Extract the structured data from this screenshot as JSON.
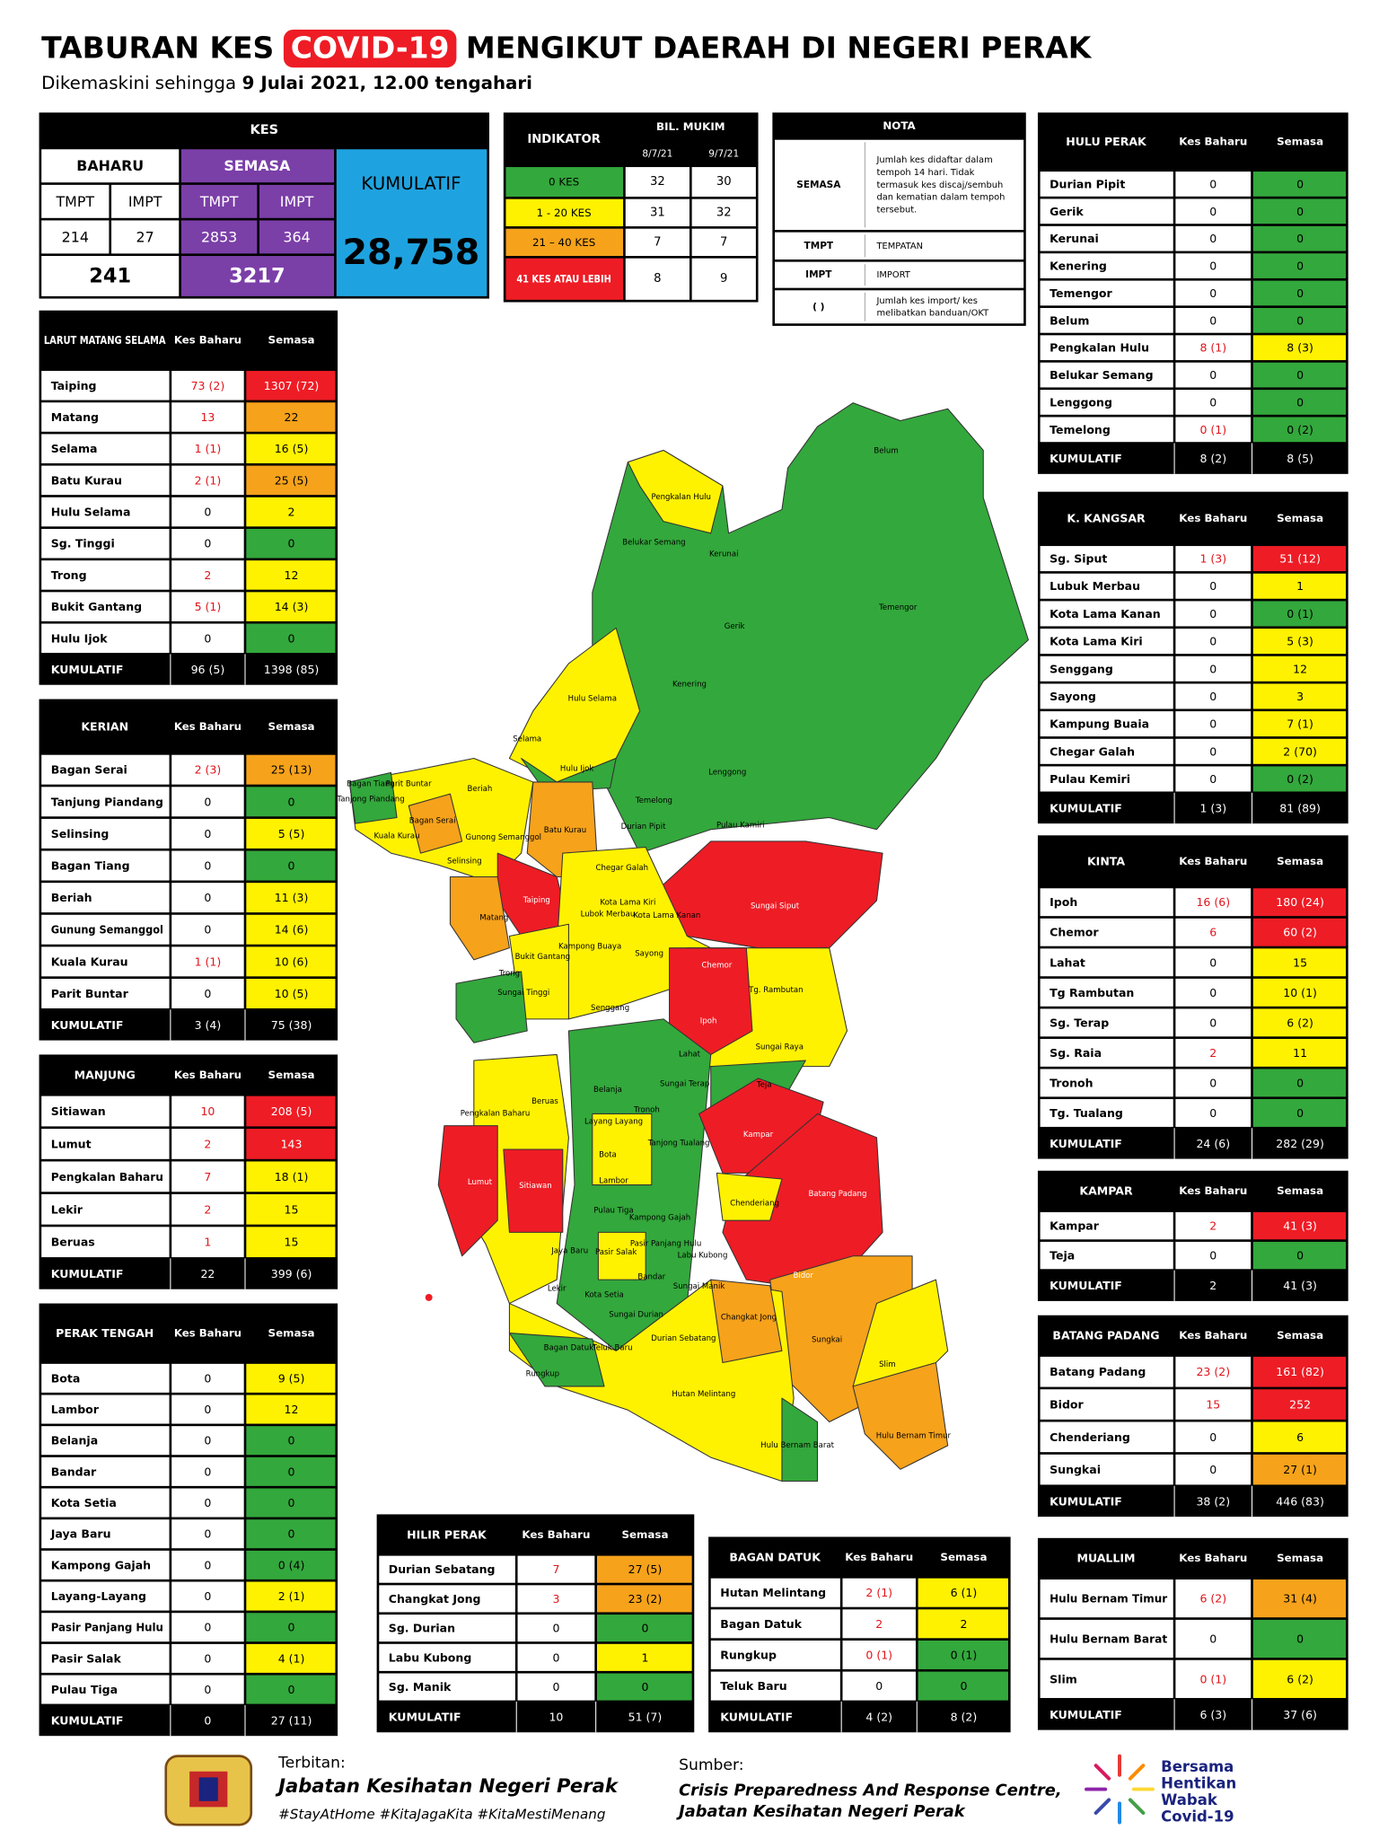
{
  "header": {
    "title_before": "TABURAN KES",
    "title_highlight": "COVID-19",
    "title_after": "MENGIKUT DAERAH DI NEGERI PERAK",
    "subtitle_before": "Dikemaskini sehingga",
    "subtitle_date": "9 Julai 2021, 12.00 tengahari"
  },
  "kes": {
    "title": "KES",
    "baharu": "BAHARU",
    "semasa": "SEMASA",
    "kumulatif": "KUMULATIF",
    "sub": [
      "TMPT",
      "IMPT",
      "TMPT",
      "IMPT"
    ],
    "values": [
      "214",
      "27",
      "2853",
      "364"
    ],
    "baharu_total": "241",
    "semasa_total": "3217",
    "kumulatif_total": "28,758"
  },
  "indikator": {
    "title": "INDIKATOR",
    "group": "BIL. MUKIM",
    "dates": [
      "8/7/21",
      "9/7/21"
    ],
    "rows": [
      {
        "label": "0 KES",
        "color": "green",
        "values": [
          32,
          30
        ]
      },
      {
        "label": "1 - 20 KES",
        "color": "yellow",
        "values": [
          31,
          32
        ]
      },
      {
        "label": "21 – 40 KES",
        "color": "orange",
        "values": [
          7,
          7
        ]
      },
      {
        "label": "41 KES ATAU LEBIH",
        "color": "red",
        "values": [
          8,
          9
        ]
      }
    ]
  },
  "nota": {
    "title": "NOTA",
    "rows": [
      {
        "key": "SEMASA",
        "text": "Jumlah kes didaftar dalam tempoh 14 hari. Tidak termasuk kes discaj/sembuh dan kematian dalam tempoh tersebut."
      },
      {
        "key": "TMPT",
        "text": "TEMPATAN"
      },
      {
        "key": "IMPT",
        "text": "IMPORT"
      },
      {
        "key": "(     )",
        "text": "Jumlah kes import/ kes melibatkan banduan/OKT"
      }
    ]
  },
  "district_columns": [
    "Kes Baharu",
    "Semasa"
  ],
  "total_label": "KUMULATIF",
  "districts": [
    {
      "title": "LARUT MATANG SELAMA",
      "rows": [
        {
          "name": "Taiping",
          "baharu": "73 (2)",
          "semasa": "1307 (72)",
          "color": "red"
        },
        {
          "name": "Matang",
          "baharu": "13",
          "semasa": "22",
          "color": "orange"
        },
        {
          "name": "Selama",
          "baharu": "1 (1)",
          "semasa": "16 (5)",
          "color": "yellow"
        },
        {
          "name": "Batu Kurau",
          "baharu": "2 (1)",
          "semasa": "25 (5)",
          "color": "orange"
        },
        {
          "name": "Hulu Selama",
          "baharu": "0",
          "semasa": "2",
          "color": "yellow"
        },
        {
          "name": "Sg. Tinggi",
          "baharu": "0",
          "semasa": "0",
          "color": "green"
        },
        {
          "name": "Trong",
          "baharu": "2",
          "semasa": "12",
          "color": "yellow"
        },
        {
          "name": "Bukit Gantang",
          "baharu": "5 (1)",
          "semasa": "14 (3)",
          "color": "yellow"
        },
        {
          "name": "Hulu Ijok",
          "baharu": "0",
          "semasa": "0",
          "color": "green"
        }
      ],
      "total": {
        "baharu": "96 (5)",
        "semasa": "1398 (85)"
      }
    },
    {
      "title": "KERIAN",
      "rows": [
        {
          "name": "Bagan Serai",
          "baharu": "2 (3)",
          "semasa": "25 (13)",
          "color": "orange"
        },
        {
          "name": "Tanjung Piandang",
          "baharu": "0",
          "semasa": "0",
          "color": "green"
        },
        {
          "name": "Selinsing",
          "baharu": "0",
          "semasa": "5 (5)",
          "color": "yellow"
        },
        {
          "name": "Bagan Tiang",
          "baharu": "0",
          "semasa": "0",
          "color": "green"
        },
        {
          "name": "Beriah",
          "baharu": "0",
          "semasa": "11 (3)",
          "color": "yellow"
        },
        {
          "name": "Gunung Semanggol",
          "baharu": "0",
          "semasa": "14 (6)",
          "color": "yellow"
        },
        {
          "name": "Kuala Kurau",
          "baharu": "1 (1)",
          "semasa": "10 (6)",
          "color": "yellow"
        },
        {
          "name": "Parit Buntar",
          "baharu": "0",
          "semasa": "10 (5)",
          "color": "yellow"
        }
      ],
      "total": {
        "baharu": "3 (4)",
        "semasa": "75 (38)"
      }
    },
    {
      "title": "MANJUNG",
      "rows": [
        {
          "name": "Sitiawan",
          "baharu": "10",
          "semasa": "208 (5)",
          "color": "red"
        },
        {
          "name": "Lumut",
          "baharu": "2",
          "semasa": "143",
          "color": "red"
        },
        {
          "name": "Pengkalan Baharu",
          "baharu": "7",
          "semasa": "18 (1)",
          "color": "yellow"
        },
        {
          "name": "Lekir",
          "baharu": "2",
          "semasa": "15",
          "color": "yellow"
        },
        {
          "name": "Beruas",
          "baharu": "1",
          "semasa": "15",
          "color": "yellow"
        }
      ],
      "total": {
        "baharu": "22",
        "semasa": "399 (6)"
      }
    },
    {
      "title": "PERAK TENGAH",
      "rows": [
        {
          "name": "Bota",
          "baharu": "0",
          "semasa": "9 (5)",
          "color": "yellow"
        },
        {
          "name": "Lambor",
          "baharu": "0",
          "semasa": "12",
          "color": "yellow"
        },
        {
          "name": "Belanja",
          "baharu": "0",
          "semasa": "0",
          "color": "green"
        },
        {
          "name": "Bandar",
          "baharu": "0",
          "semasa": "0",
          "color": "green"
        },
        {
          "name": "Kota Setia",
          "baharu": "0",
          "semasa": "0",
          "color": "green"
        },
        {
          "name": "Jaya Baru",
          "baharu": "0",
          "semasa": "0",
          "color": "green"
        },
        {
          "name": "Kampong Gajah",
          "baharu": "0",
          "semasa": "0 (4)",
          "color": "green"
        },
        {
          "name": "Layang-Layang",
          "baharu": "0",
          "semasa": "2 (1)",
          "color": "yellow"
        },
        {
          "name": "Pasir Panjang Hulu",
          "baharu": "0",
          "semasa": "0",
          "color": "green"
        },
        {
          "name": "Pasir Salak",
          "baharu": "0",
          "semasa": "4 (1)",
          "color": "yellow"
        },
        {
          "name": "Pulau Tiga",
          "baharu": "0",
          "semasa": "0",
          "color": "green"
        }
      ],
      "total": {
        "baharu": "0",
        "semasa": "27 (11)"
      }
    },
    {
      "title": "HULU PERAK",
      "rows": [
        {
          "name": "Durian Pipit",
          "baharu": "0",
          "semasa": "0",
          "color": "green"
        },
        {
          "name": "Gerik",
          "baharu": "0",
          "semasa": "0",
          "color": "green"
        },
        {
          "name": "Kerunai",
          "baharu": "0",
          "semasa": "0",
          "color": "green"
        },
        {
          "name": "Kenering",
          "baharu": "0",
          "semasa": "0",
          "color": "green"
        },
        {
          "name": "Temengor",
          "baharu": "0",
          "semasa": "0",
          "color": "green"
        },
        {
          "name": "Belum",
          "baharu": "0",
          "semasa": "0",
          "color": "green"
        },
        {
          "name": "Pengkalan Hulu",
          "baharu": "8 (1)",
          "semasa": "8 (3)",
          "color": "yellow"
        },
        {
          "name": "Belukar Semang",
          "baharu": "0",
          "semasa": "0",
          "color": "green"
        },
        {
          "name": "Lenggong",
          "baharu": "0",
          "semasa": "0",
          "color": "green"
        },
        {
          "name": "Temelong",
          "baharu": "0 (1)",
          "semasa": "0 (2)",
          "color": "green"
        }
      ],
      "total": {
        "baharu": "8 (2)",
        "semasa": "8 (5)"
      }
    },
    {
      "title": "K. KANGSAR",
      "rows": [
        {
          "name": "Sg. Siput",
          "baharu": "1 (3)",
          "semasa": "51 (12)",
          "color": "red"
        },
        {
          "name": "Lubuk Merbau",
          "baharu": "0",
          "semasa": "1",
          "color": "yellow"
        },
        {
          "name": "Kota Lama Kanan",
          "baharu": "0",
          "semasa": "0 (1)",
          "color": "green"
        },
        {
          "name": "Kota Lama Kiri",
          "baharu": "0",
          "semasa": "5 (3)",
          "color": "yellow"
        },
        {
          "name": "Senggang",
          "baharu": "0",
          "semasa": "12",
          "color": "yellow"
        },
        {
          "name": "Sayong",
          "baharu": "0",
          "semasa": "3",
          "color": "yellow"
        },
        {
          "name": "Kampung Buaia",
          "baharu": "0",
          "semasa": "7 (1)",
          "color": "yellow"
        },
        {
          "name": "Chegar Galah",
          "baharu": "0",
          "semasa": "2 (70)",
          "color": "yellow"
        },
        {
          "name": "Pulau Kemiri",
          "baharu": "0",
          "semasa": "0 (2)",
          "color": "green"
        }
      ],
      "total": {
        "baharu": "1 (3)",
        "semasa": "81 (89)"
      }
    },
    {
      "title": "KINTA",
      "rows": [
        {
          "name": "Ipoh",
          "baharu": "16 (6)",
          "semasa": "180 (24)",
          "color": "red"
        },
        {
          "name": "Chemor",
          "baharu": "6",
          "semasa": "60 (2)",
          "color": "red"
        },
        {
          "name": "Lahat",
          "baharu": "0",
          "semasa": "15",
          "color": "yellow"
        },
        {
          "name": "Tg Rambutan",
          "baharu": "0",
          "semasa": "10 (1)",
          "color": "yellow"
        },
        {
          "name": "Sg. Terap",
          "baharu": "0",
          "semasa": "6 (2)",
          "color": "yellow"
        },
        {
          "name": "Sg. Raia",
          "baharu": "2",
          "semasa": "11",
          "color": "yellow"
        },
        {
          "name": "Tronoh",
          "baharu": "0",
          "semasa": "0",
          "color": "green"
        },
        {
          "name": "Tg. Tualang",
          "baharu": "0",
          "semasa": "0",
          "color": "green"
        }
      ],
      "total": {
        "baharu": "24 (6)",
        "semasa": "282 (29)"
      }
    },
    {
      "title": "KAMPAR",
      "rows": [
        {
          "name": "Kampar",
          "baharu": "2",
          "semasa": "41 (3)",
          "color": "red"
        },
        {
          "name": "Teja",
          "baharu": "0",
          "semasa": "0",
          "color": "green"
        }
      ],
      "total": {
        "baharu": "2",
        "semasa": "41 (3)"
      }
    },
    {
      "title": "BATANG PADANG",
      "rows": [
        {
          "name": "Batang Padang",
          "baharu": "23 (2)",
          "semasa": "161 (82)",
          "color": "red"
        },
        {
          "name": "Bidor",
          "baharu": "15",
          "semasa": "252",
          "color": "red"
        },
        {
          "name": "Chenderiang",
          "baharu": "0",
          "semasa": "6",
          "color": "yellow"
        },
        {
          "name": "Sungkai",
          "baharu": "0",
          "semasa": "27 (1)",
          "color": "orange"
        }
      ],
      "total": {
        "baharu": "38 (2)",
        "semasa": "446 (83)"
      }
    },
    {
      "title": "MUALLIM",
      "rows": [
        {
          "name": "Hulu Bernam Timur",
          "baharu": "6 (2)",
          "semasa": "31 (4)",
          "color": "orange"
        },
        {
          "name": "Hulu Bernam Barat",
          "baharu": "0",
          "semasa": "0",
          "color": "green"
        },
        {
          "name": "Slim",
          "baharu": "0 (1)",
          "semasa": "6 (2)",
          "color": "yellow"
        }
      ],
      "total": {
        "baharu": "6 (3)",
        "semasa": "37 (6)"
      }
    },
    {
      "title": "HILIR PERAK",
      "rows": [
        {
          "name": "Durian Sebatang",
          "baharu": "7",
          "semasa": "27 (5)",
          "color": "orange"
        },
        {
          "name": "Changkat Jong",
          "baharu": "3",
          "semasa": "23 (2)",
          "color": "orange"
        },
        {
          "name": "Sg. Durian",
          "baharu": "0",
          "semasa": "0",
          "color": "green"
        },
        {
          "name": "Labu Kubong",
          "baharu": "0",
          "semasa": "1",
          "color": "yellow"
        },
        {
          "name": "Sg. Manik",
          "baharu": "0",
          "semasa": "0",
          "color": "green"
        }
      ],
      "total": {
        "baharu": "10",
        "semasa": "51 (7)"
      }
    },
    {
      "title": "BAGAN DATUK",
      "rows": [
        {
          "name": "Hutan Melintang",
          "baharu": "2 (1)",
          "semasa": "6 (1)",
          "color": "yellow"
        },
        {
          "name": "Bagan Datuk",
          "baharu": "2",
          "semasa": "2",
          "color": "yellow"
        },
        {
          "name": "Rungkup",
          "baharu": "0 (1)",
          "semasa": "0 (1)",
          "color": "green"
        },
        {
          "name": "Teluk Baru",
          "baharu": "0",
          "semasa": "0",
          "color": "green"
        }
      ],
      "total": {
        "baharu": "4 (2)",
        "semasa": "8 (2)"
      }
    }
  ],
  "map": {
    "labels": [
      "Belum",
      "Pengkalan Hulu",
      "Belukar Semang",
      "Kerunai",
      "Temengor",
      "Gerik",
      "Kenering",
      "Hulu Selama",
      "Selama",
      "Hulu Ijok",
      "Lenggong",
      "Bagan Tiang",
      "Parit Buntar",
      "Tanjong Piandang",
      "Beriah",
      "Temelong",
      "Bagan Serai",
      "Batu Kurau",
      "Durian Pipit",
      "Pulau Kamiri",
      "Kuala Kurau",
      "Gunong Semanggol",
      "Selinsing",
      "Chegar Galah",
      "Taiping",
      "Sungai Siput",
      "Lubok Merbau",
      "Kota Lama Kiri",
      "Kota Lama Kanan",
      "Matang",
      "Kampong Buaya",
      "Bukit Gantang",
      "Sayong",
      "Chemor",
      "Trong",
      "Tg. Rambutan",
      "Sungai Tinggi",
      "Senggang",
      "Ipoh",
      "Sungai Raya",
      "Lahat",
      "Sungai Terap",
      "Teja",
      "Pengkalan Baharu",
      "Beruas",
      "Belanja",
      "Tronoh",
      "Layang Layang",
      "Kampar",
      "Tanjong Tualang",
      "Bota",
      "Lumut",
      "Lambor",
      "Sitiawan",
      "Batang Padang",
      "Chenderiang",
      "Pulau Tiga",
      "Kampong Gajah",
      "Pasir Panjang Hulu",
      "Jaya Baru",
      "Pasir Salak",
      "Labu Kubong",
      "Bidor",
      "Bandar",
      "Sungai Manik",
      "Lekir",
      "Kota Setia",
      "Changkat Jong",
      "Sungai Durian",
      "Sungkai",
      "Bagan Datuk",
      "Teluk Baru",
      "Durian Sebatang",
      "Slim",
      "Rungkup",
      "Hutan Melintang",
      "Hulu Bernam Timur",
      "Hulu Bernam Barat"
    ]
  },
  "footer": {
    "terbitan_label": "Terbitan:",
    "terbitan": "Jabatan Kesihatan Negeri Perak",
    "hashtags": "#StayAtHome #KitaJagaKita #KitaMestiMenang",
    "sumber_label": "Sumber:",
    "sumber_lines": [
      "Crisis Preparedness And Response Centre,",
      "Jabatan Kesihatan Negeri Perak"
    ],
    "logo_lines": [
      "Bersama",
      "Hentikan",
      "Wabak",
      "Covid-19"
    ]
  }
}
